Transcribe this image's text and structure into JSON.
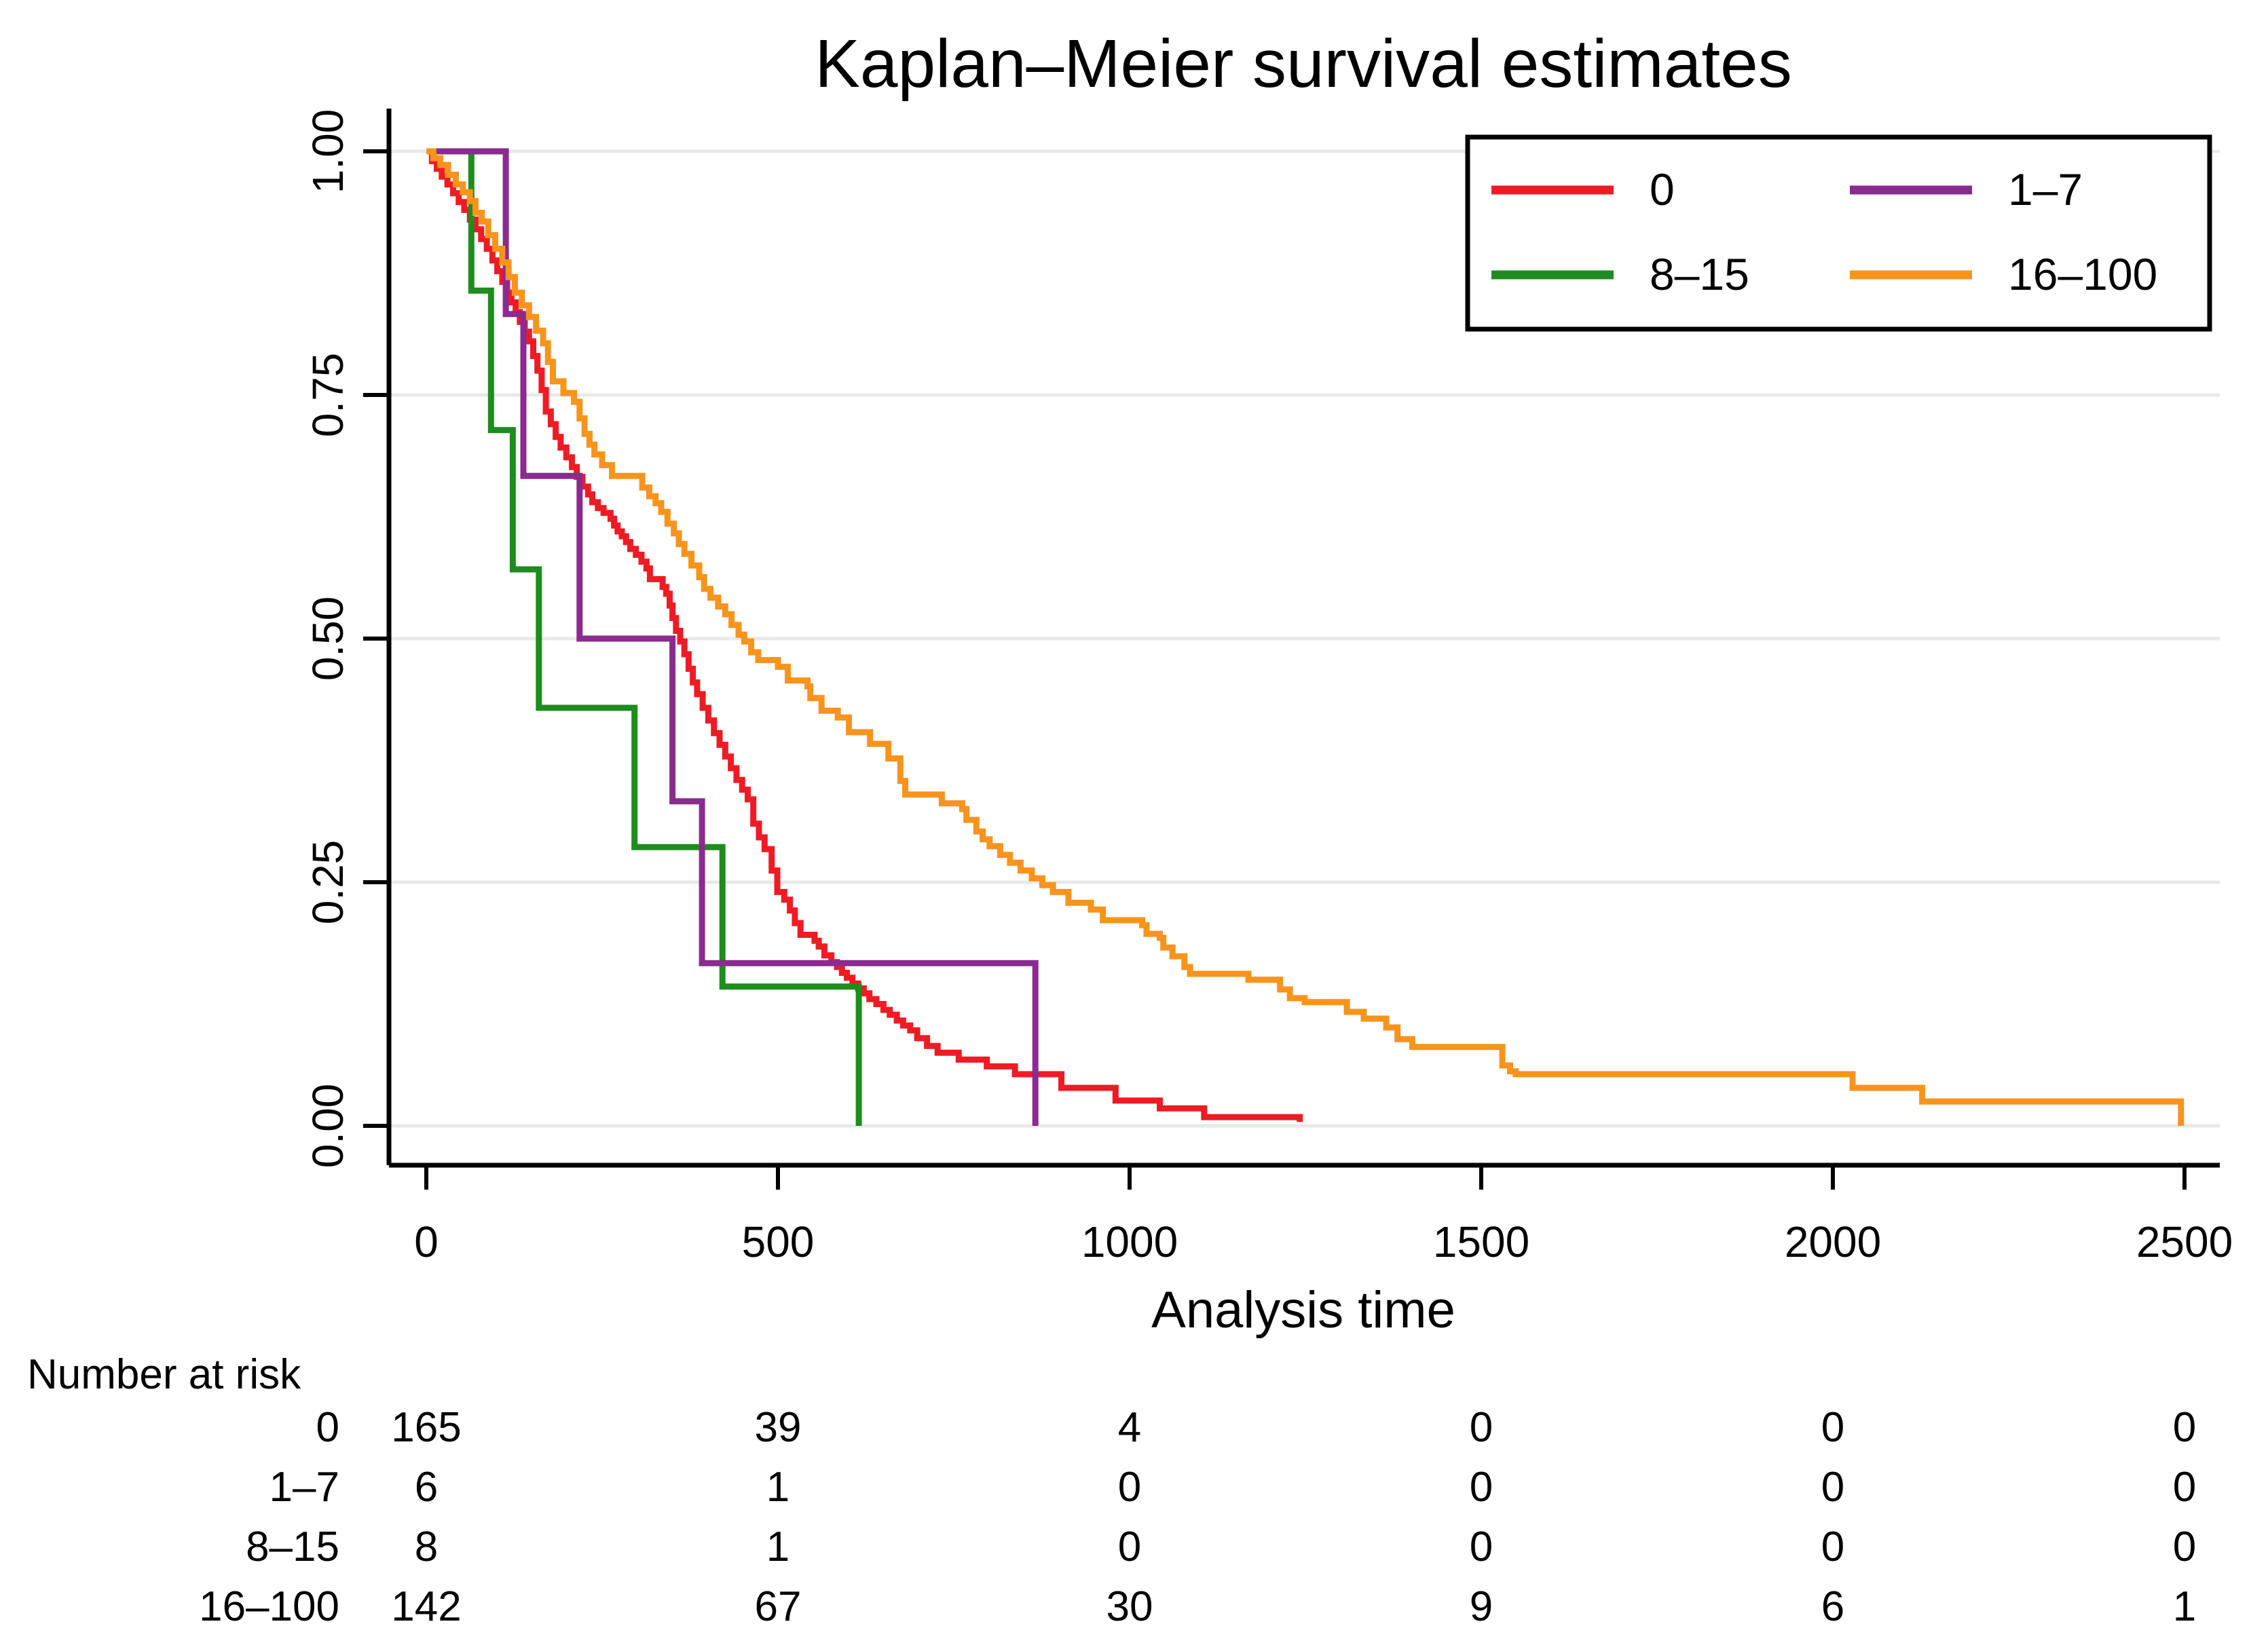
{
  "title": "Kaplan–Meier survival estimates",
  "axes": {
    "x": {
      "label": "Analysis time",
      "ticks": [
        0,
        500,
        1000,
        1500,
        2000,
        2500
      ],
      "range": [
        0,
        2500
      ]
    },
    "y": {
      "ticks": [
        "0.00",
        "0.25",
        "0.50",
        "0.75",
        "1.00"
      ],
      "tick_values": [
        0.0,
        0.25,
        0.5,
        0.75,
        1.0
      ],
      "range": [
        0,
        1
      ]
    }
  },
  "legend": {
    "items": [
      {
        "label": "0",
        "color": "#ED1C24"
      },
      {
        "label": "1–7",
        "color": "#8A2B8F"
      },
      {
        "label": "8–15",
        "color": "#1E8C1E"
      },
      {
        "label": "16–100",
        "color": "#F7941D"
      }
    ]
  },
  "risk_table": {
    "header": "Number at risk",
    "time_points": [
      0,
      500,
      1000,
      1500,
      2000,
      2500
    ],
    "rows": [
      {
        "label": "0",
        "values": [
          165,
          39,
          4,
          0,
          0,
          0
        ]
      },
      {
        "label": "1–7",
        "values": [
          6,
          1,
          0,
          0,
          0,
          0
        ]
      },
      {
        "label": "8–15",
        "values": [
          8,
          1,
          0,
          0,
          0,
          0
        ]
      },
      {
        "label": "16–100",
        "values": [
          142,
          67,
          30,
          9,
          6,
          1
        ]
      }
    ]
  },
  "chart_data": {
    "type": "line",
    "subtype": "step-survival",
    "title": "Kaplan–Meier survival estimates",
    "xlabel": "Analysis time",
    "ylabel": "",
    "xlim": [
      0,
      2500
    ],
    "ylim": [
      0.0,
      1.0
    ],
    "grid": "horizontal",
    "legend_position": "top-right-box",
    "series": [
      {
        "name": "0",
        "color": "#ED1C24",
        "points": [
          [
            0,
            1.0
          ],
          [
            8,
            0.99
          ],
          [
            15,
            0.982
          ],
          [
            22,
            0.974
          ],
          [
            30,
            0.966
          ],
          [
            38,
            0.957
          ],
          [
            46,
            0.948
          ],
          [
            54,
            0.94
          ],
          [
            62,
            0.93
          ],
          [
            70,
            0.92
          ],
          [
            78,
            0.91
          ],
          [
            86,
            0.9
          ],
          [
            94,
            0.888
          ],
          [
            101,
            0.877
          ],
          [
            108,
            0.866
          ],
          [
            115,
            0.855
          ],
          [
            121,
            0.845
          ],
          [
            127,
            0.835
          ],
          [
            133,
            0.825
          ],
          [
            140,
            0.815
          ],
          [
            146,
            0.805
          ],
          [
            152,
            0.79
          ],
          [
            158,
            0.775
          ],
          [
            164,
            0.755
          ],
          [
            170,
            0.733
          ],
          [
            177,
            0.72
          ],
          [
            184,
            0.707
          ],
          [
            191,
            0.696
          ],
          [
            199,
            0.686
          ],
          [
            207,
            0.676
          ],
          [
            214,
            0.666
          ],
          [
            222,
            0.656
          ],
          [
            230,
            0.648
          ],
          [
            236,
            0.64
          ],
          [
            244,
            0.634
          ],
          [
            252,
            0.629
          ],
          [
            262,
            0.623
          ],
          [
            267,
            0.616
          ],
          [
            272,
            0.61
          ],
          [
            278,
            0.605
          ],
          [
            284,
            0.599
          ],
          [
            290,
            0.592
          ],
          [
            298,
            0.586
          ],
          [
            306,
            0.579
          ],
          [
            313,
            0.572
          ],
          [
            318,
            0.561
          ],
          [
            336,
            0.553
          ],
          [
            341,
            0.546
          ],
          [
            346,
            0.534
          ],
          [
            350,
            0.521
          ],
          [
            355,
            0.508
          ],
          [
            361,
            0.497
          ],
          [
            367,
            0.484
          ],
          [
            373,
            0.469
          ],
          [
            379,
            0.455
          ],
          [
            385,
            0.443
          ],
          [
            393,
            0.429
          ],
          [
            401,
            0.416
          ],
          [
            409,
            0.403
          ],
          [
            417,
            0.391
          ],
          [
            425,
            0.379
          ],
          [
            433,
            0.367
          ],
          [
            441,
            0.355
          ],
          [
            449,
            0.345
          ],
          [
            457,
            0.335
          ],
          [
            465,
            0.31
          ],
          [
            473,
            0.296
          ],
          [
            481,
            0.284
          ],
          [
            491,
            0.262
          ],
          [
            499,
            0.24
          ],
          [
            509,
            0.232
          ],
          [
            517,
            0.221
          ],
          [
            524,
            0.208
          ],
          [
            532,
            0.196
          ],
          [
            552,
            0.19
          ],
          [
            558,
            0.184
          ],
          [
            566,
            0.175
          ],
          [
            576,
            0.168
          ],
          [
            584,
            0.163
          ],
          [
            591,
            0.157
          ],
          [
            598,
            0.152
          ],
          [
            606,
            0.146
          ],
          [
            614,
            0.141
          ],
          [
            622,
            0.136
          ],
          [
            630,
            0.13
          ],
          [
            640,
            0.125
          ],
          [
            650,
            0.119
          ],
          [
            659,
            0.114
          ],
          [
            669,
            0.108
          ],
          [
            678,
            0.103
          ],
          [
            688,
            0.098
          ],
          [
            698,
            0.09
          ],
          [
            712,
            0.082
          ],
          [
            727,
            0.075
          ],
          [
            757,
            0.068
          ],
          [
            797,
            0.061
          ],
          [
            837,
            0.053
          ],
          [
            903,
            0.039
          ],
          [
            980,
            0.026
          ],
          [
            1043,
            0.018
          ],
          [
            1106,
            0.009
          ],
          [
            1242,
            0.004
          ]
        ]
      },
      {
        "name": "8–15",
        "color": "#1E8C1E",
        "points": [
          [
            0,
            1.0
          ],
          [
            64,
            0.857
          ],
          [
            92,
            0.714
          ],
          [
            123,
            0.571
          ],
          [
            160,
            0.429
          ],
          [
            296,
            0.286
          ],
          [
            421,
            0.143
          ],
          [
            615,
            0.0
          ]
        ]
      },
      {
        "name": "1–7",
        "color": "#8A2B8F",
        "points": [
          [
            0,
            1.0
          ],
          [
            113,
            0.833
          ],
          [
            138,
            0.667
          ],
          [
            218,
            0.5
          ],
          [
            350,
            0.333
          ],
          [
            392,
            0.167
          ],
          [
            866,
            0.0
          ]
        ]
      },
      {
        "name": "16–100",
        "color": "#F7941D",
        "points": [
          [
            0,
            1.0
          ],
          [
            10,
            0.993
          ],
          [
            20,
            0.986
          ],
          [
            31,
            0.976
          ],
          [
            42,
            0.966
          ],
          [
            52,
            0.958
          ],
          [
            62,
            0.949
          ],
          [
            70,
            0.937
          ],
          [
            79,
            0.928
          ],
          [
            88,
            0.914
          ],
          [
            98,
            0.9
          ],
          [
            108,
            0.886
          ],
          [
            117,
            0.871
          ],
          [
            126,
            0.855
          ],
          [
            136,
            0.842
          ],
          [
            146,
            0.83
          ],
          [
            156,
            0.816
          ],
          [
            166,
            0.803
          ],
          [
            173,
            0.784
          ],
          [
            180,
            0.764
          ],
          [
            195,
            0.752
          ],
          [
            210,
            0.743
          ],
          [
            218,
            0.726
          ],
          [
            225,
            0.71
          ],
          [
            232,
            0.699
          ],
          [
            239,
            0.689
          ],
          [
            250,
            0.678
          ],
          [
            264,
            0.667
          ],
          [
            307,
            0.655
          ],
          [
            317,
            0.646
          ],
          [
            326,
            0.639
          ],
          [
            334,
            0.63
          ],
          [
            343,
            0.618
          ],
          [
            352,
            0.608
          ],
          [
            359,
            0.597
          ],
          [
            367,
            0.587
          ],
          [
            377,
            0.575
          ],
          [
            388,
            0.563
          ],
          [
            395,
            0.551
          ],
          [
            404,
            0.542
          ],
          [
            415,
            0.533
          ],
          [
            425,
            0.525
          ],
          [
            434,
            0.514
          ],
          [
            444,
            0.504
          ],
          [
            452,
            0.497
          ],
          [
            462,
            0.486
          ],
          [
            472,
            0.478
          ],
          [
            500,
            0.471
          ],
          [
            514,
            0.457
          ],
          [
            542,
            0.451
          ],
          [
            546,
            0.439
          ],
          [
            562,
            0.426
          ],
          [
            585,
            0.419
          ],
          [
            601,
            0.404
          ],
          [
            631,
            0.392
          ],
          [
            657,
            0.377
          ],
          [
            674,
            0.354
          ],
          [
            681,
            0.34
          ],
          [
            733,
            0.331
          ],
          [
            762,
            0.325
          ],
          [
            768,
            0.314
          ],
          [
            782,
            0.302
          ],
          [
            791,
            0.294
          ],
          [
            801,
            0.287
          ],
          [
            816,
            0.278
          ],
          [
            830,
            0.27
          ],
          [
            845,
            0.262
          ],
          [
            861,
            0.254
          ],
          [
            876,
            0.247
          ],
          [
            891,
            0.24
          ],
          [
            913,
            0.229
          ],
          [
            945,
            0.222
          ],
          [
            962,
            0.211
          ],
          [
            1018,
            0.206
          ],
          [
            1024,
            0.197
          ],
          [
            1043,
            0.193
          ],
          [
            1048,
            0.183
          ],
          [
            1061,
            0.174
          ],
          [
            1078,
            0.163
          ],
          [
            1086,
            0.156
          ],
          [
            1169,
            0.15
          ],
          [
            1214,
            0.14
          ],
          [
            1228,
            0.131
          ],
          [
            1249,
            0.127
          ],
          [
            1309,
            0.117
          ],
          [
            1333,
            0.11
          ],
          [
            1365,
            0.101
          ],
          [
            1381,
            0.089
          ],
          [
            1402,
            0.081
          ],
          [
            1530,
            0.062
          ],
          [
            1541,
            0.056
          ],
          [
            1549,
            0.053
          ],
          [
            2028,
            0.039
          ],
          [
            2127,
            0.025
          ],
          [
            2495,
            0.0
          ]
        ]
      }
    ]
  },
  "style": {
    "grid_color": "#e9e9e9",
    "axis_color": "#000000",
    "background": "#ffffff"
  }
}
